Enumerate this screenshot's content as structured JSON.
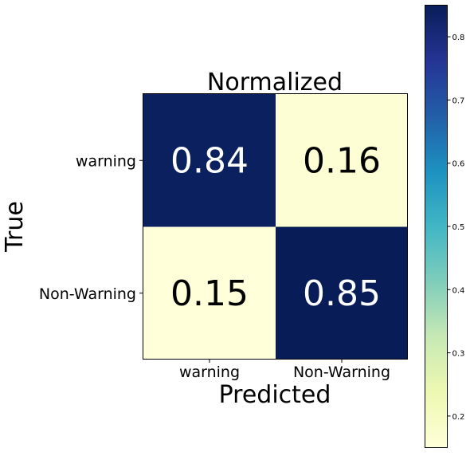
{
  "chart_data": {
    "type": "heatmap",
    "title": "Normalized",
    "xlabel": "Predicted",
    "ylabel": "True",
    "x_categories": [
      "warning",
      "Non-Warning"
    ],
    "y_categories": [
      "warning",
      "Non-Warning"
    ],
    "values": [
      [
        0.84,
        0.16
      ],
      [
        0.15,
        0.85
      ]
    ],
    "value_labels": [
      [
        "0.84",
        "0.16"
      ],
      [
        "0.15",
        "0.85"
      ]
    ],
    "colormap": "YlGnBu",
    "colorbar": {
      "range": [
        0.15,
        0.85
      ],
      "ticks": [
        0.2,
        0.3,
        0.4,
        0.5,
        0.6,
        0.7,
        0.8
      ],
      "tick_labels": [
        "0.2",
        "0.3",
        "0.4",
        "0.5",
        "0.6",
        "0.7",
        "0.8"
      ]
    },
    "grid": false
  }
}
